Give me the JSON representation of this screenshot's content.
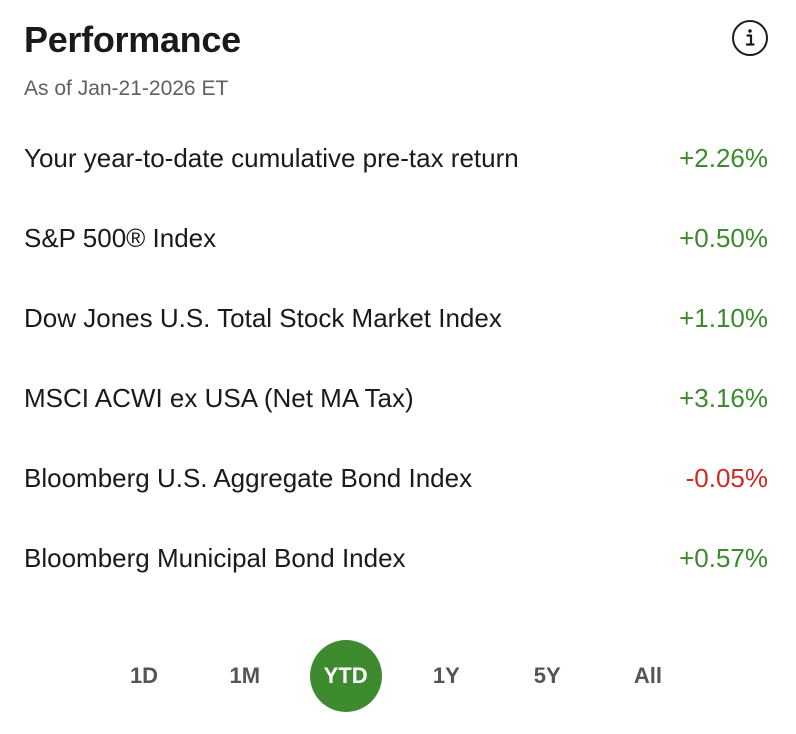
{
  "header": {
    "title": "Performance",
    "as_of": "As of Jan-21-2026 ET",
    "info_icon": "info-icon"
  },
  "rows": [
    {
      "label": "Your year-to-date cumulative pre-tax return",
      "value": "+2.26%",
      "sign": "positive"
    },
    {
      "label": "S&P 500® Index",
      "value": "+0.50%",
      "sign": "positive"
    },
    {
      "label": "Dow Jones U.S. Total Stock Market Index",
      "value": "+1.10%",
      "sign": "positive"
    },
    {
      "label": "MSCI ACWI ex USA (Net MA Tax)",
      "value": "+3.16%",
      "sign": "positive"
    },
    {
      "label": "Bloomberg U.S. Aggregate Bond Index",
      "value": "-0.05%",
      "sign": "negative"
    },
    {
      "label": "Bloomberg Municipal Bond Index",
      "value": "+0.57%",
      "sign": "positive"
    }
  ],
  "periods": {
    "items": [
      "1D",
      "1M",
      "YTD",
      "1Y",
      "5Y",
      "All"
    ],
    "selected": "YTD"
  },
  "colors": {
    "positive": "#3b8a2e",
    "negative": "#cc2a22",
    "selected_period_bg": "#3e8a2e"
  }
}
